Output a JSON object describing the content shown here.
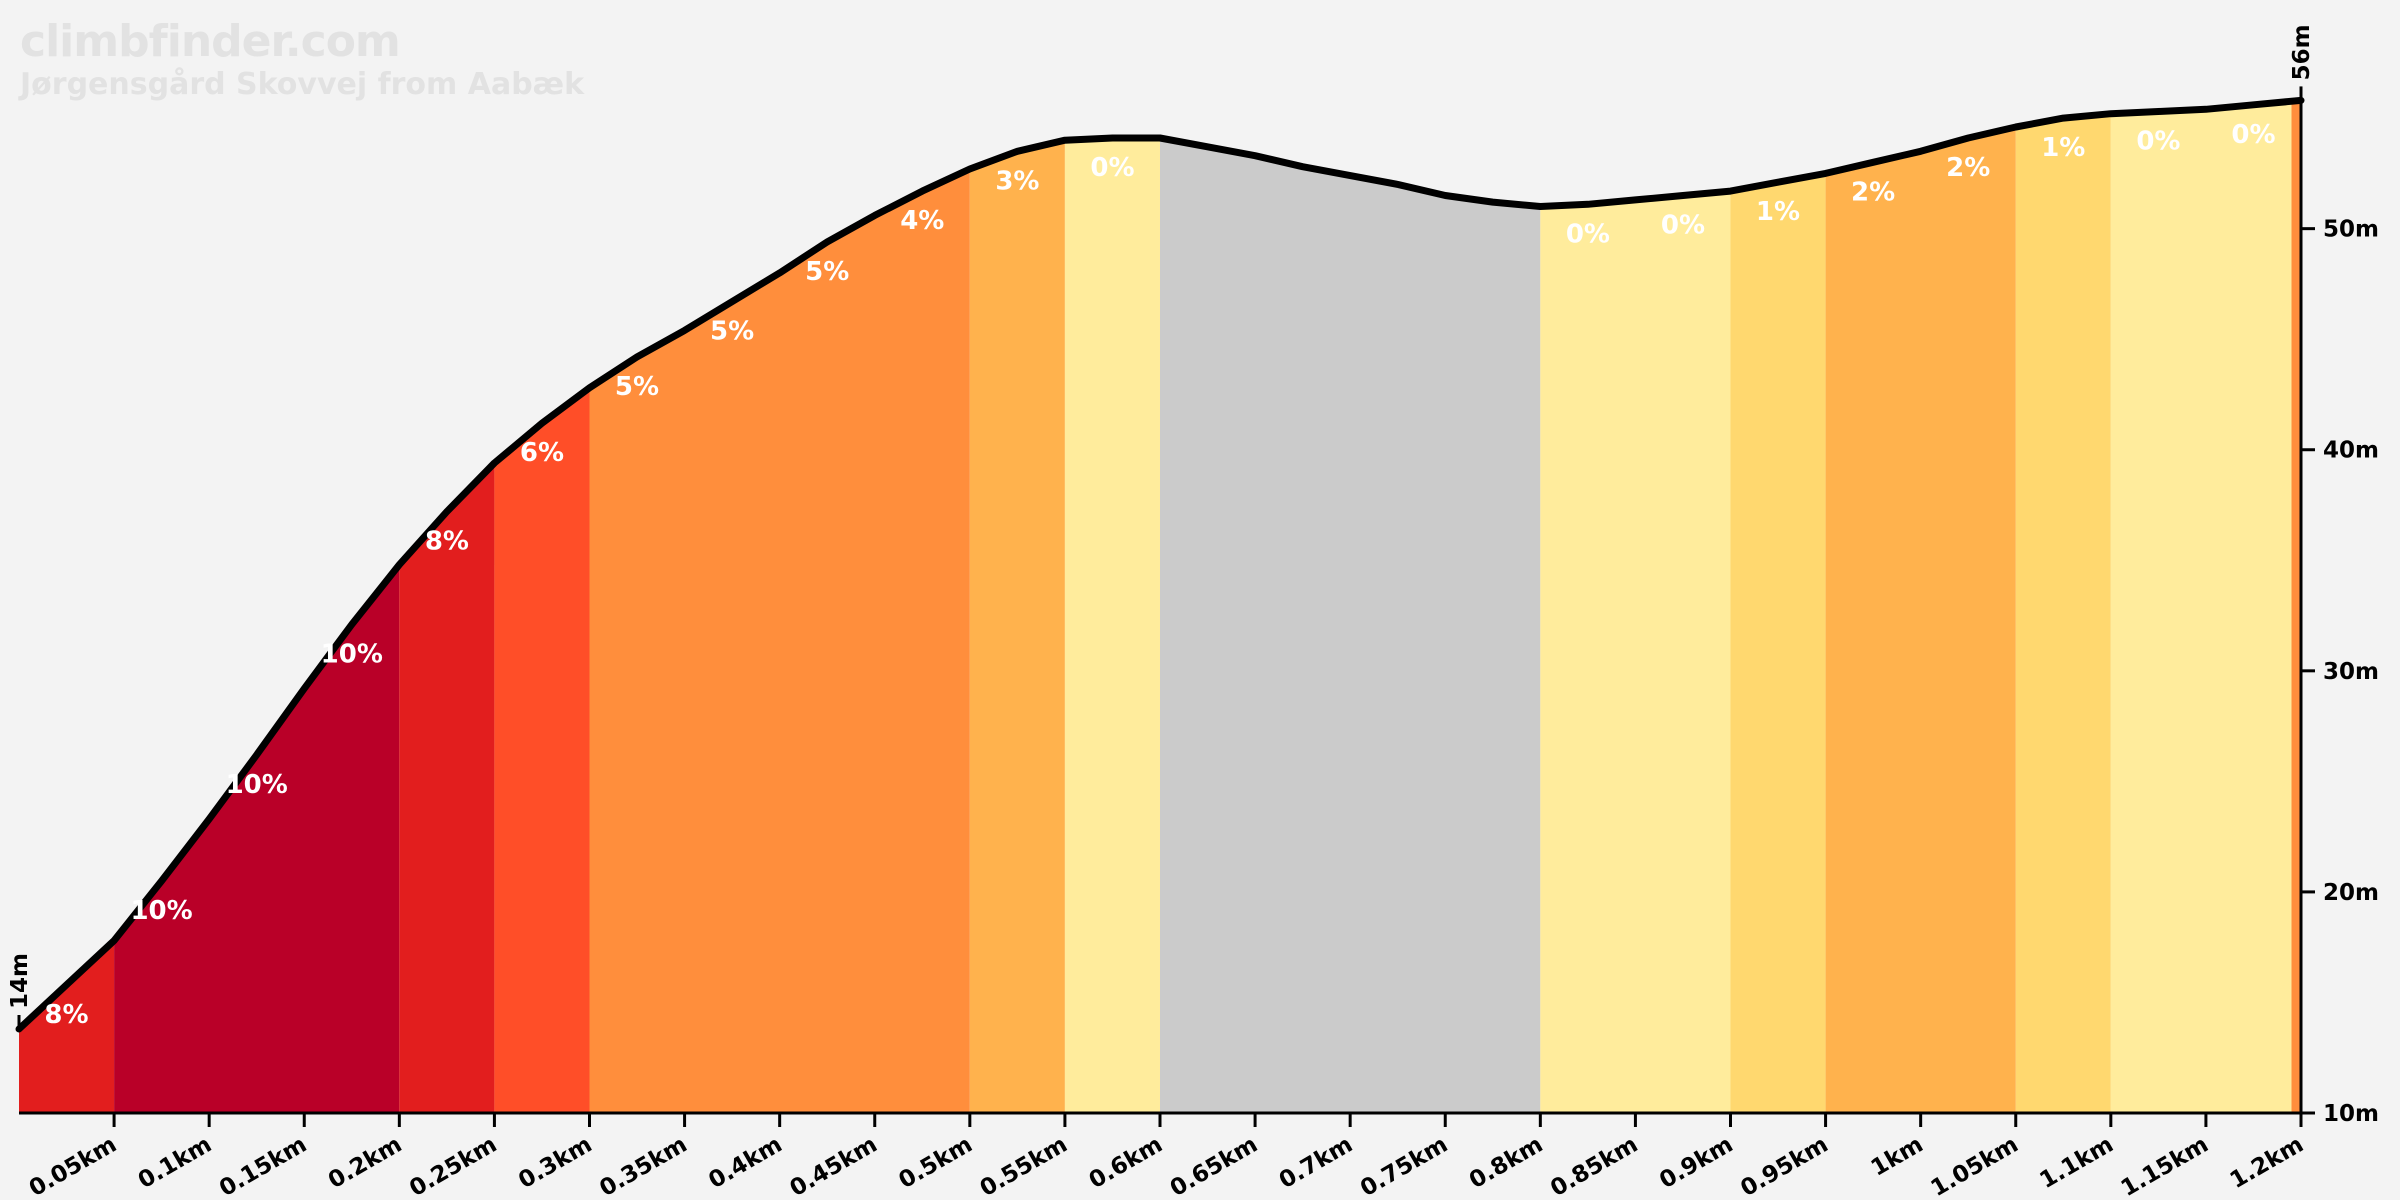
{
  "header": {
    "site": "climbfinder.com",
    "climb_name": "Jørgensgård Skovvej from Aabæk"
  },
  "chart_data": {
    "type": "area",
    "x_unit": "km",
    "y_unit": "m",
    "xlim": [
      0,
      1.2
    ],
    "ylim": [
      10,
      56
    ],
    "x_ticks": [
      "0.05km",
      "0.1km",
      "0.15km",
      "0.2km",
      "0.25km",
      "0.3km",
      "0.35km",
      "0.4km",
      "0.45km",
      "0.5km",
      "0.55km",
      "0.6km",
      "0.65km",
      "0.7km",
      "0.75km",
      "0.8km",
      "0.85km",
      "0.9km",
      "0.95km",
      "1km",
      "1.05km",
      "1.1km",
      "1.15km",
      "1.2km"
    ],
    "x_tick_values": [
      0.05,
      0.1,
      0.15,
      0.2,
      0.25,
      0.3,
      0.35,
      0.4,
      0.45,
      0.5,
      0.55,
      0.6,
      0.65,
      0.7,
      0.75,
      0.8,
      0.85,
      0.9,
      0.95,
      1.0,
      1.05,
      1.1,
      1.15,
      1.2
    ],
    "y_ticks": [
      "10m",
      "20m",
      "30m",
      "40m",
      "50m"
    ],
    "y_tick_values": [
      10,
      20,
      30,
      40,
      50
    ],
    "start_label": "14m",
    "end_label": "56m",
    "profile": {
      "x": [
        0,
        0.025,
        0.05,
        0.075,
        0.1,
        0.125,
        0.15,
        0.175,
        0.2,
        0.225,
        0.25,
        0.275,
        0.3,
        0.325,
        0.35,
        0.375,
        0.4,
        0.425,
        0.45,
        0.475,
        0.5,
        0.525,
        0.55,
        0.575,
        0.6,
        0.625,
        0.65,
        0.675,
        0.7,
        0.725,
        0.75,
        0.775,
        0.8,
        0.825,
        0.85,
        0.875,
        0.9,
        0.925,
        0.95,
        0.975,
        1.0,
        1.025,
        1.05,
        1.075,
        1.1,
        1.125,
        1.15,
        1.175,
        1.2
      ],
      "y": [
        13.8,
        15.8,
        17.8,
        20.5,
        23.3,
        26.2,
        29.2,
        32.1,
        34.8,
        37.2,
        39.4,
        41.2,
        42.8,
        44.2,
        45.4,
        46.7,
        48.0,
        49.4,
        50.6,
        51.7,
        52.7,
        53.5,
        54.0,
        54.1,
        54.1,
        53.7,
        53.3,
        52.8,
        52.4,
        52.0,
        51.5,
        51.2,
        51.0,
        51.1,
        51.3,
        51.5,
        51.7,
        52.1,
        52.5,
        53.0,
        53.5,
        54.1,
        54.6,
        55.0,
        55.2,
        55.3,
        55.4,
        55.6,
        55.8
      ]
    },
    "segments": [
      {
        "from": 0.0,
        "to": 0.05,
        "label": "8%",
        "color": "#e21e1e"
      },
      {
        "from": 0.05,
        "to": 0.2,
        "label": "10%",
        "color": "#b90028"
      },
      {
        "from": 0.2,
        "to": 0.25,
        "label": "8%",
        "color": "#e21e1e"
      },
      {
        "from": 0.25,
        "to": 0.3,
        "label": "6%",
        "color": "#ff4e28"
      },
      {
        "from": 0.3,
        "to": 0.5,
        "label": "5%",
        "color": "#ff8e3c"
      },
      {
        "from": 0.5,
        "to": 0.55,
        "label": "3%",
        "color": "#ffb24d"
      },
      {
        "from": 0.55,
        "to": 0.6,
        "label": "0%",
        "color": "#ffec9c"
      },
      {
        "from": 0.6,
        "to": 0.8,
        "label": "",
        "color": "#cbcbcb"
      },
      {
        "from": 0.8,
        "to": 0.9,
        "label": "0%",
        "color": "#ffec9c"
      },
      {
        "from": 0.9,
        "to": 0.95,
        "label": "1%",
        "color": "#ffd86f"
      },
      {
        "from": 0.95,
        "to": 1.05,
        "label": "2%",
        "color": "#ffb24d"
      },
      {
        "from": 1.05,
        "to": 1.1,
        "label": "1%",
        "color": "#ffd86f"
      },
      {
        "from": 1.1,
        "to": 1.195,
        "label": "0%",
        "color": "#ffec9c"
      },
      {
        "from": 1.195,
        "to": 1.2,
        "label": "",
        "color": "#ff8e3c"
      }
    ],
    "gradient_labels": [
      {
        "x": 0.025,
        "label": "8%"
      },
      {
        "x": 0.075,
        "label": "10%"
      },
      {
        "x": 0.125,
        "label": "10%"
      },
      {
        "x": 0.175,
        "label": "10%"
      },
      {
        "x": 0.225,
        "label": "8%"
      },
      {
        "x": 0.275,
        "label": "6%"
      },
      {
        "x": 0.325,
        "label": "5%"
      },
      {
        "x": 0.375,
        "label": "5%"
      },
      {
        "x": 0.425,
        "label": "5%"
      },
      {
        "x": 0.475,
        "label": "4%"
      },
      {
        "x": 0.525,
        "label": "3%"
      },
      {
        "x": 0.575,
        "label": "0%"
      },
      {
        "x": 0.825,
        "label": "0%"
      },
      {
        "x": 0.875,
        "label": "0%"
      },
      {
        "x": 0.925,
        "label": "1%"
      },
      {
        "x": 0.975,
        "label": "2%"
      },
      {
        "x": 1.025,
        "label": "2%"
      },
      {
        "x": 1.075,
        "label": "1%"
      },
      {
        "x": 1.125,
        "label": "0%"
      },
      {
        "x": 1.175,
        "label": "0%"
      }
    ]
  }
}
